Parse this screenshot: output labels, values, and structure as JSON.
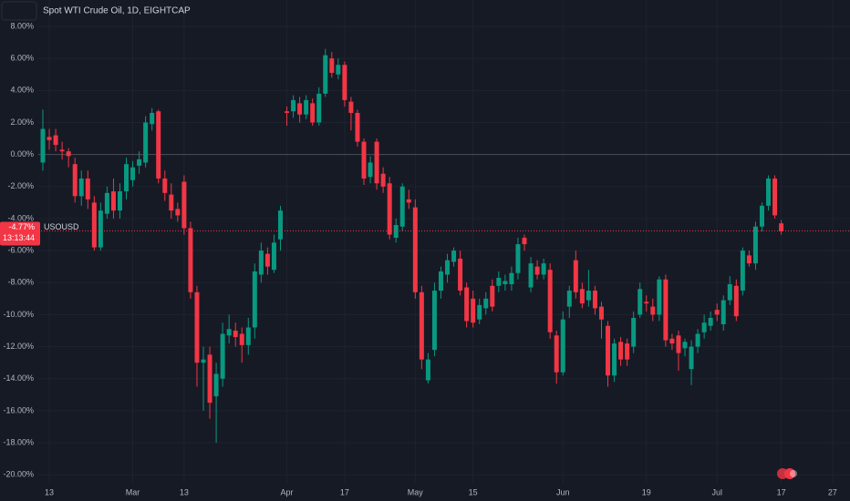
{
  "chart_data": {
    "type": "candlestick",
    "title": "Spot WTI Crude Oil, 1D, EIGHTCAP",
    "symbol": "USOUSD",
    "countdown": "13:13:44",
    "last_price": {
      "value": -4.77,
      "label": "-4.77%"
    },
    "up_color": "#089981",
    "down_color": "#f23645",
    "categories": [
      null,
      "13",
      null,
      null,
      null,
      null,
      null,
      null,
      null,
      null,
      null,
      null,
      null,
      null,
      "Mar",
      null,
      null,
      null,
      null,
      null,
      null,
      null,
      "13",
      null,
      null,
      null,
      null,
      null,
      null,
      null,
      null,
      null,
      null,
      null,
      null,
      null,
      null,
      null,
      "Apr",
      null,
      null,
      null,
      null,
      null,
      null,
      null,
      null,
      "17",
      null,
      null,
      null,
      null,
      null,
      null,
      null,
      null,
      null,
      null,
      "May",
      null,
      null,
      null,
      null,
      null,
      null,
      null,
      null,
      "15",
      null,
      null,
      null,
      null,
      null,
      null,
      null,
      null,
      null,
      null,
      null,
      null,
      null,
      "Jun",
      null,
      null,
      null,
      null,
      null,
      null,
      null,
      null,
      null,
      null,
      null,
      null,
      "19",
      null,
      null,
      null,
      null,
      null,
      null,
      null,
      null,
      null,
      null,
      "Jul",
      null,
      null,
      null,
      null,
      null,
      null,
      null,
      null,
      null,
      "17",
      null,
      null,
      null,
      null,
      null,
      null,
      null,
      "27"
    ],
    "open": [
      -0.5,
      1.1,
      1.2,
      0.3,
      0.2,
      -0.6,
      -2.6,
      -1.5,
      -3.0,
      -5.8,
      -3.7,
      -2.3,
      -3.5,
      -2.3,
      -1.6,
      -0.7,
      -0.5,
      1.9,
      2.7,
      -1.5,
      -2.5,
      -3.4,
      -1.7,
      -4.6,
      -8.6,
      -13.0,
      -12.5,
      -15.1,
      -14.0,
      -11.3,
      -11.0,
      -11.2,
      -11.9,
      -10.8,
      -7.5,
      -6.2,
      -7.2,
      -5.3,
      2.7,
      2.7,
      3.2,
      2.5,
      3.2,
      2.0,
      3.8,
      6.0,
      5.0,
      5.6,
      3.3,
      2.6,
      0.8,
      -1.4,
      0.8,
      -1.2,
      -1.8,
      -5.2,
      -4.5,
      -2.8,
      -3.3,
      -8.6,
      -14.1,
      -12.2,
      -8.5,
      -7.5,
      -6.7,
      -6.5,
      -8.3,
      -9.0,
      -10.3,
      -9.6,
      -8.2,
      -8.2,
      -8.1,
      -8.1,
      -7.4,
      -5.2,
      -8.3,
      -7.0,
      -7.5,
      -7.2,
      -11.3,
      -13.6,
      -9.5,
      -6.6,
      -8.4,
      -9.1,
      -8.5,
      -9.5,
      -10.7,
      -13.8,
      -11.7,
      -11.8,
      -12.0,
      -10.0,
      -9.2,
      -9.5,
      -10.0,
      -7.8,
      -11.5,
      -11.3,
      -12.1,
      -13.4,
      -12.0,
      -11.1,
      -10.7,
      -9.7,
      -10.6,
      -9.1,
      -8.2,
      -8.5,
      -6.3,
      -6.8,
      -4.5,
      -3.2,
      -1.5,
      -4.3,
      null,
      null,
      null,
      null,
      null,
      null,
      null,
      null
    ],
    "high": [
      2.8,
      1.6,
      1.6,
      0.8,
      0.4,
      -0.2,
      -1.0,
      -1.0,
      -2.6,
      -3.0,
      -2.0,
      -1.5,
      -1.8,
      -0.2,
      -0.4,
      0.2,
      2.4,
      2.9,
      2.8,
      -1.0,
      -1.8,
      -3.0,
      -1.3,
      -4.2,
      -8.2,
      -12.0,
      -12.0,
      -13.0,
      -10.5,
      -10.0,
      -10.5,
      -10.8,
      -10.2,
      -6.8,
      -5.5,
      -5.8,
      -5.0,
      -3.2,
      3.0,
      3.7,
      3.6,
      3.7,
      3.5,
      4.2,
      6.6,
      6.4,
      6.0,
      5.8,
      3.6,
      2.8,
      1.0,
      -0.1,
      1.0,
      -0.8,
      -1.4,
      -4.0,
      -1.8,
      -2.2,
      -2.8,
      -8.2,
      -12.4,
      -8.0,
      -7.0,
      -6.2,
      -5.8,
      -6.0,
      -8.0,
      -8.5,
      -9.0,
      -8.6,
      -7.8,
      -7.3,
      -7.5,
      -7.0,
      -5.2,
      -5.0,
      -6.4,
      -6.6,
      -6.5,
      -6.8,
      -11.0,
      -9.8,
      -8.2,
      -6.0,
      -8.0,
      -7.2,
      -8.2,
      -9.2,
      -10.4,
      -11.5,
      -11.4,
      -11.5,
      -9.8,
      -8.0,
      -8.8,
      -9.0,
      -7.6,
      -7.5,
      -11.2,
      -11.0,
      -11.5,
      -11.6,
      -10.9,
      -10.0,
      -9.8,
      -9.3,
      -8.8,
      -7.6,
      -7.8,
      -5.8,
      -6.0,
      -4.2,
      -3.0,
      -1.3,
      -1.3,
      -4.1,
      null,
      null,
      null,
      null,
      null,
      null,
      null,
      null
    ],
    "low": [
      -1.0,
      0.3,
      0.2,
      -0.3,
      -0.8,
      -3.0,
      -3.2,
      -3.4,
      -6.0,
      -6.0,
      -4.0,
      -4.0,
      -4.0,
      -2.8,
      -2.0,
      -1.2,
      -0.8,
      1.5,
      -1.8,
      -2.9,
      -4.0,
      -4.2,
      -5.0,
      -9.0,
      -14.5,
      -16.0,
      -16.5,
      -18.0,
      -14.5,
      -11.8,
      -12.0,
      -13.0,
      -12.5,
      -11.5,
      -8.0,
      -7.5,
      -7.4,
      -6.0,
      1.8,
      2.3,
      2.0,
      2.2,
      1.8,
      1.8,
      3.6,
      4.8,
      4.7,
      3.0,
      1.5,
      0.5,
      -1.9,
      -1.8,
      -2.2,
      -2.4,
      -5.3,
      -5.5,
      -4.8,
      -3.4,
      -9.0,
      -13.4,
      -14.3,
      -12.6,
      -9.0,
      -8.0,
      -7.0,
      -8.8,
      -10.8,
      -10.8,
      -10.6,
      -10.0,
      -9.8,
      -8.6,
      -8.5,
      -8.5,
      -7.8,
      -6.0,
      -8.6,
      -7.8,
      -7.8,
      -11.5,
      -14.3,
      -13.8,
      -10.2,
      -9.0,
      -9.6,
      -9.5,
      -10.0,
      -11.5,
      -14.5,
      -14.2,
      -13.2,
      -13.2,
      -12.4,
      -10.2,
      -9.8,
      -10.4,
      -10.4,
      -12.0,
      -12.2,
      -13.5,
      -12.6,
      -14.4,
      -12.4,
      -11.5,
      -11.0,
      -10.4,
      -11.0,
      -9.4,
      -10.4,
      -8.8,
      -7.0,
      -7.2,
      -4.8,
      -3.5,
      -4.0,
      -5.0,
      null,
      null,
      null,
      null,
      null,
      null,
      null,
      null
    ],
    "close": [
      1.6,
      0.9,
      0.6,
      0.2,
      -0.1,
      -2.6,
      -1.5,
      -2.8,
      -5.8,
      -3.5,
      -2.4,
      -3.5,
      -2.3,
      -0.6,
      -0.8,
      -0.3,
      2.0,
      2.6,
      -1.5,
      -2.4,
      -3.5,
      -3.8,
      -4.6,
      -8.6,
      -13.0,
      -12.8,
      -15.5,
      -13.7,
      -11.2,
      -10.9,
      -11.4,
      -11.9,
      -10.8,
      -7.3,
      -6.0,
      -7.0,
      -5.5,
      -3.5,
      2.6,
      3.4,
      2.5,
      3.4,
      2.0,
      3.8,
      6.2,
      5.1,
      5.6,
      3.4,
      2.6,
      0.8,
      -1.5,
      -0.5,
      -1.8,
      -2.0,
      -5.0,
      -4.4,
      -2.0,
      -3.0,
      -8.6,
      -12.8,
      -12.8,
      -8.5,
      -7.3,
      -6.6,
      -6.0,
      -8.5,
      -10.4,
      -10.5,
      -9.4,
      -9.0,
      -9.5,
      -7.7,
      -7.9,
      -7.4,
      -5.6,
      -5.6,
      -6.8,
      -7.5,
      -6.8,
      -11.1,
      -13.6,
      -10.3,
      -8.5,
      -8.6,
      -9.3,
      -8.5,
      -9.6,
      -10.3,
      -13.8,
      -11.8,
      -12.8,
      -12.8,
      -10.2,
      -8.4,
      -9.3,
      -10.0,
      -7.8,
      -11.6,
      -11.8,
      -12.4,
      -11.7,
      -12.0,
      -11.2,
      -10.5,
      -10.2,
      -10.0,
      -9.1,
      -8.1,
      -10.1,
      -6.0,
      -6.8,
      -4.5,
      -3.2,
      -1.5,
      -3.8,
      -4.8,
      null,
      null,
      null,
      null,
      null,
      null,
      null,
      null
    ],
    "ylim": [
      -20.5,
      9.65
    ],
    "yticks": [
      {
        "value": 8,
        "label": "8.00%"
      },
      {
        "value": 6,
        "label": "6.00%"
      },
      {
        "value": 4,
        "label": "4.00%"
      },
      {
        "value": 2,
        "label": "2.00%"
      },
      {
        "value": 0,
        "label": "0.00%"
      },
      {
        "value": -2,
        "label": "-2.00%"
      },
      {
        "value": -4,
        "label": "-4.00%"
      },
      {
        "value": -6,
        "label": "-6.00%"
      },
      {
        "value": -8,
        "label": "-8.00%"
      },
      {
        "value": -10,
        "label": "-10.00%"
      },
      {
        "value": -12,
        "label": "-12.00%"
      },
      {
        "value": -14,
        "label": "-14.00%"
      },
      {
        "value": -16,
        "label": "-16.00%"
      },
      {
        "value": -18,
        "label": "-18.00%"
      },
      {
        "value": -20,
        "label": "-20.00%"
      }
    ],
    "grid": true
  }
}
